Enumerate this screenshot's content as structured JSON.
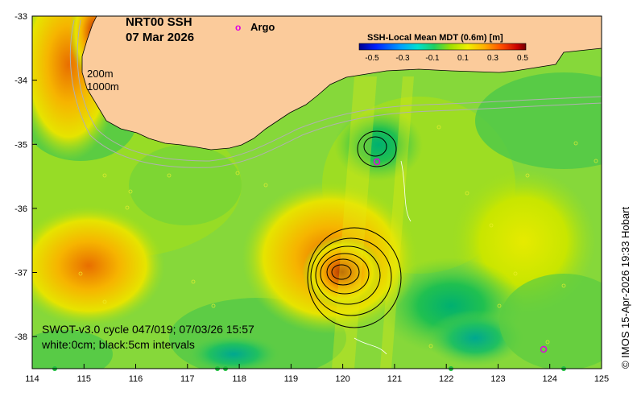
{
  "title": {
    "line1": "NRT00 SSH",
    "line2": "07 Mar 2026"
  },
  "legend": {
    "argo_marker": "o",
    "argo_label": "Argo",
    "argo_color": "#e000e0"
  },
  "isobaths": {
    "label_200": "200m",
    "label_1000": "1000m"
  },
  "colorbar": {
    "title": "SSH-Local Mean MDT (0.6m) [m]",
    "ticks": [
      "-0.5",
      "-0.3",
      "-0.1",
      "0.1",
      "0.3",
      "0.5"
    ],
    "colors": [
      "#0000b4",
      "#0050ff",
      "#00c8ff",
      "#00e6a0",
      "#50d250",
      "#b4e600",
      "#ffff00",
      "#ffb400",
      "#ff6400",
      "#c80000",
      "#780000"
    ]
  },
  "swot": {
    "line1": "SWOT-v3.0 cycle 047/019; 07/03/26 15:57",
    "line2": "white:0cm; black:5cm intervals"
  },
  "credit": "© IMOS 15-Apr-2026 19:33 Hobart",
  "axes": {
    "x_ticks": [
      "114",
      "115",
      "116",
      "117",
      "118",
      "119",
      "120",
      "121",
      "122",
      "123",
      "124",
      "125"
    ],
    "y_ticks": [
      "-33",
      "-34",
      "-35",
      "-36",
      "-37",
      "-38"
    ],
    "xlim": [
      114,
      125
    ],
    "ylim": [
      -38.5,
      -33
    ]
  },
  "colors": {
    "land": "#fbcb9b",
    "ocean_base": "#7fd63a",
    "frame": "#000000"
  }
}
